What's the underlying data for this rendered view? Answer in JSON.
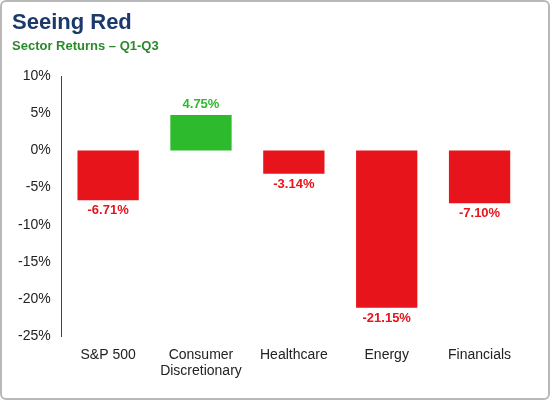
{
  "chart_data": {
    "type": "bar",
    "title": "Seeing Red",
    "subtitle": "Sector Returns – Q1-Q3",
    "categories": [
      "S&P 500",
      "Consumer Discretionary",
      "Healthcare",
      "Energy",
      "Financials"
    ],
    "values": [
      -6.71,
      4.75,
      -3.14,
      -21.15,
      -7.1
    ],
    "value_labels": [
      "-6.71%",
      "4.75%",
      "-3.14%",
      "-21.15%",
      "-7.10%"
    ],
    "colors": [
      "#e8141c",
      "#2dbb2d",
      "#e8141c",
      "#e8141c",
      "#e8141c"
    ],
    "ylim": [
      -25,
      10
    ],
    "yticks": [
      {
        "value": 10,
        "label": "10%"
      },
      {
        "value": 5,
        "label": "5%"
      },
      {
        "value": 0,
        "label": "0%"
      },
      {
        "value": -5,
        "label": "-5%"
      },
      {
        "value": -10,
        "label": "-10%"
      },
      {
        "value": -15,
        "label": "-15%"
      },
      {
        "value": -20,
        "label": "-20%"
      },
      {
        "value": -25,
        "label": "-25%"
      }
    ],
    "grid": false,
    "data_labels": true
  }
}
